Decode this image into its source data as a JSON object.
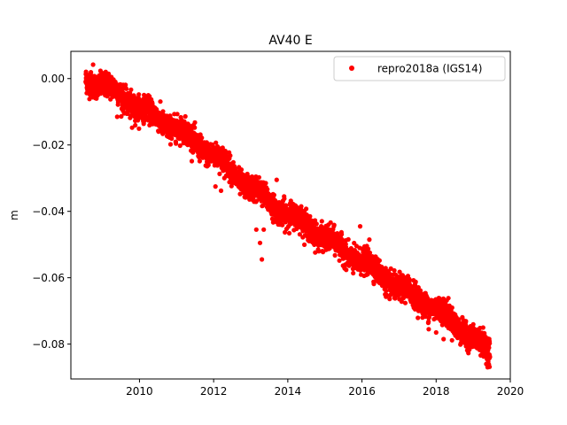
{
  "chart_data": {
    "type": "scatter",
    "title": "AV40 E",
    "xlabel": "",
    "ylabel": "m",
    "xlim": [
      2008.15,
      2020.0
    ],
    "ylim": [
      -0.0905,
      0.0082
    ],
    "x_ticks": [
      2010,
      2012,
      2014,
      2016,
      2018,
      2020
    ],
    "y_ticks": [
      0.0,
      -0.02,
      -0.04,
      -0.06,
      -0.08
    ],
    "x_tick_labels": [
      "2010",
      "2012",
      "2014",
      "2016",
      "2018",
      "2020"
    ],
    "y_tick_labels": [
      "0.00",
      "−0.02",
      "−0.04",
      "−0.06",
      "−0.08"
    ],
    "grid": false,
    "legend_position": "top-right",
    "series": [
      {
        "name": "repro2018a (IGS14)",
        "color": "#ff0000",
        "marker": "circle",
        "trend": {
          "x": [
            2008.55,
            2009.0,
            2009.5,
            2010.0,
            2010.5,
            2011.0,
            2011.5,
            2012.0,
            2012.5,
            2013.0,
            2013.5,
            2014.0,
            2014.5,
            2015.0,
            2015.5,
            2016.0,
            2016.5,
            2017.0,
            2017.5,
            2018.0,
            2018.5,
            2019.0,
            2019.45
          ],
          "y": [
            0.0,
            -0.002,
            -0.005,
            -0.009,
            -0.012,
            -0.015,
            -0.019,
            -0.023,
            -0.028,
            -0.033,
            -0.037,
            -0.041,
            -0.044,
            -0.048,
            -0.052,
            -0.055,
            -0.059,
            -0.063,
            -0.066,
            -0.069,
            -0.074,
            -0.078,
            -0.083
          ]
        },
        "scatter_sd": 0.0018,
        "outliers": [
          {
            "x": 2009.4,
            "y": -0.0115
          },
          {
            "x": 2009.8,
            "y": -0.0148
          },
          {
            "x": 2012.05,
            "y": -0.0325
          },
          {
            "x": 2012.2,
            "y": -0.0338
          },
          {
            "x": 2013.15,
            "y": -0.0455
          },
          {
            "x": 2013.25,
            "y": -0.0495
          },
          {
            "x": 2013.3,
            "y": -0.0545
          },
          {
            "x": 2013.35,
            "y": -0.0455
          },
          {
            "x": 2013.7,
            "y": -0.0305
          },
          {
            "x": 2013.9,
            "y": -0.0355
          },
          {
            "x": 2015.95,
            "y": -0.0445
          },
          {
            "x": 2016.2,
            "y": -0.0485
          },
          {
            "x": 2017.8,
            "y": -0.0755
          },
          {
            "x": 2018.0,
            "y": -0.0765
          },
          {
            "x": 2018.2,
            "y": -0.0785
          },
          {
            "x": 2008.75,
            "y": 0.0042
          }
        ]
      }
    ]
  }
}
